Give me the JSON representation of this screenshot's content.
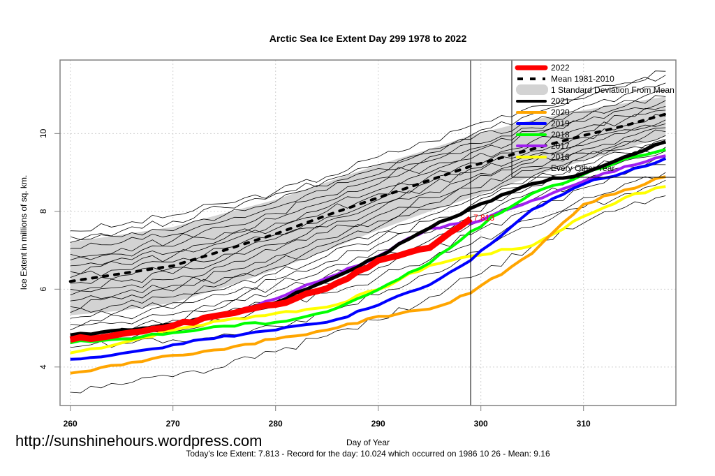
{
  "site_url": "http://sunshinehours.wordpress.com",
  "footer_text": "Today's Ice Extent: 7.813  - Record for the day: 10.024 which occurred on 1986 10 26  - Mean: 9.16",
  "chart_data": {
    "type": "line",
    "title": "Arctic Sea Ice Extent Day 299 1978 to 2022",
    "xlabel": "Day of Year",
    "ylabel": "Ice Extent in millions of sq. km.",
    "xlim": [
      259,
      319
    ],
    "ylim": [
      3.01,
      11.89
    ],
    "xticks": [
      260,
      270,
      280,
      290,
      300,
      310
    ],
    "yticks": [
      4,
      6,
      8,
      10
    ],
    "grid": true,
    "current_day": 299,
    "current_value_label": "7.813",
    "current_value": 7.813,
    "legend_position": "top-right",
    "legend": [
      {
        "label": "2022",
        "color": "#ff0000",
        "style": "thick"
      },
      {
        "label": "Mean 1981-2010",
        "color": "#000000",
        "style": "dashed"
      },
      {
        "label": "1 Standard Deviation From Mean",
        "color": "#d3d3d3",
        "style": "band"
      },
      {
        "label": "2021",
        "color": "#000000",
        "style": "solid"
      },
      {
        "label": "2020",
        "color": "#ffa500",
        "style": "solid"
      },
      {
        "label": "2019",
        "color": "#0000ff",
        "style": "solid"
      },
      {
        "label": "2018",
        "color": "#00ff00",
        "style": "solid"
      },
      {
        "label": "2017",
        "color": "#a020f0",
        "style": "solid"
      },
      {
        "label": "2016",
        "color": "#ffff00",
        "style": "solid"
      },
      {
        "label": "Every Other Year",
        "color": "#000000",
        "style": "thin"
      }
    ],
    "x": [
      260,
      265,
      270,
      275,
      280,
      285,
      290,
      295,
      299,
      305,
      310,
      314,
      318
    ],
    "mean": {
      "name": "Mean 1981-2010",
      "values": [
        6.2,
        6.4,
        6.6,
        7.0,
        7.42,
        7.9,
        8.35,
        8.8,
        9.16,
        9.6,
        9.95,
        10.2,
        10.5
      ]
    },
    "std_band": {
      "name": "1 Standard Deviation From Mean",
      "upper": [
        7.21,
        7.4,
        7.6,
        7.95,
        8.3,
        8.75,
        9.2,
        9.6,
        9.95,
        10.35,
        10.6,
        10.78,
        10.95
      ],
      "lower": [
        5.33,
        5.45,
        5.65,
        6.05,
        6.5,
        7.0,
        7.52,
        8.0,
        8.35,
        8.9,
        9.3,
        9.6,
        9.93
      ]
    },
    "series": [
      {
        "name": "2016",
        "color": "#ffff00",
        "values": [
          4.36,
          4.62,
          4.95,
          5.2,
          5.38,
          5.54,
          5.99,
          6.61,
          6.85,
          7.12,
          7.87,
          8.35,
          8.64
        ]
      },
      {
        "name": "2017",
        "color": "#a020f0",
        "values": [
          4.65,
          4.85,
          5.05,
          5.35,
          5.75,
          6.29,
          6.85,
          7.57,
          7.69,
          8.28,
          8.77,
          9.15,
          9.43
        ]
      },
      {
        "name": "2018",
        "color": "#00ff00",
        "values": [
          4.62,
          4.72,
          4.88,
          5.05,
          5.15,
          5.42,
          5.99,
          6.67,
          7.48,
          8.46,
          8.95,
          9.35,
          9.59
        ]
      },
      {
        "name": "2019",
        "color": "#0000ff",
        "values": [
          4.2,
          4.35,
          4.57,
          4.8,
          4.95,
          5.15,
          5.59,
          6.11,
          6.74,
          8.05,
          8.7,
          9.0,
          9.36
        ]
      },
      {
        "name": "2020",
        "color": "#ffa500",
        "values": [
          3.84,
          4.05,
          4.3,
          4.45,
          4.72,
          4.95,
          5.3,
          5.49,
          5.9,
          6.92,
          8.18,
          8.55,
          8.89
        ]
      },
      {
        "name": "2021",
        "color": "#000000",
        "values": [
          4.82,
          4.95,
          5.1,
          5.35,
          5.65,
          6.22,
          6.83,
          7.57,
          8.08,
          8.71,
          8.98,
          9.4,
          9.79
        ]
      },
      {
        "name": "2022",
        "color": "#ff0000",
        "values": [
          4.7,
          4.85,
          5.06,
          5.35,
          5.6,
          6.02,
          6.74,
          7.06,
          7.813
        ]
      }
    ],
    "other_years": [
      [
        7.5,
        7.65,
        7.9,
        8.2,
        8.5,
        8.9,
        9.4,
        9.8,
        10.2,
        10.7,
        11.0,
        11.3,
        11.6
      ],
      [
        7.35,
        7.5,
        7.75,
        8.1,
        8.45,
        8.8,
        9.2,
        9.6,
        9.95,
        10.5,
        10.9,
        11.2,
        11.5
      ],
      [
        7.2,
        7.35,
        7.5,
        7.9,
        8.25,
        8.65,
        9.1,
        9.5,
        9.85,
        10.3,
        10.7,
        11.0,
        11.3
      ],
      [
        7.05,
        7.2,
        7.4,
        7.75,
        8.1,
        8.55,
        8.95,
        9.4,
        9.75,
        10.15,
        10.55,
        10.85,
        11.1
      ],
      [
        6.9,
        7.05,
        7.25,
        7.6,
        7.95,
        8.4,
        8.85,
        9.3,
        9.6,
        10.05,
        10.4,
        10.7,
        10.95
      ],
      [
        6.75,
        6.9,
        7.1,
        7.45,
        7.8,
        8.25,
        8.7,
        9.15,
        9.5,
        9.95,
        10.3,
        10.6,
        10.85
      ],
      [
        6.6,
        6.8,
        6.95,
        7.3,
        7.7,
        8.1,
        8.55,
        9.0,
        9.35,
        9.8,
        10.15,
        10.45,
        10.7
      ],
      [
        6.45,
        6.65,
        6.85,
        7.2,
        7.55,
        8.0,
        8.45,
        8.9,
        9.25,
        9.7,
        10.05,
        10.35,
        10.6
      ],
      [
        6.3,
        6.5,
        6.7,
        7.05,
        7.4,
        7.85,
        8.3,
        8.75,
        9.1,
        9.55,
        9.9,
        10.2,
        10.45
      ],
      [
        6.15,
        6.35,
        6.55,
        6.9,
        7.3,
        7.75,
        8.2,
        8.65,
        9.0,
        9.45,
        9.8,
        10.1,
        10.35
      ],
      [
        6.0,
        6.2,
        6.4,
        6.75,
        7.15,
        7.6,
        8.05,
        8.5,
        8.85,
        9.35,
        9.7,
        10.0,
        10.25
      ],
      [
        5.85,
        6.05,
        6.25,
        6.6,
        7.0,
        7.45,
        7.9,
        8.35,
        8.75,
        9.25,
        9.6,
        9.9,
        10.15
      ],
      [
        5.7,
        5.9,
        6.1,
        6.45,
        6.85,
        7.3,
        7.75,
        8.2,
        8.6,
        9.15,
        9.5,
        9.8,
        10.05
      ],
      [
        5.55,
        5.75,
        5.95,
        6.3,
        6.7,
        7.15,
        7.6,
        8.05,
        8.45,
        9.05,
        9.4,
        9.7,
        9.95
      ],
      [
        5.4,
        5.6,
        5.8,
        6.15,
        6.55,
        7.0,
        7.45,
        7.9,
        8.3,
        8.9,
        9.3,
        9.6,
        9.85
      ],
      [
        5.25,
        5.45,
        5.65,
        6.0,
        6.4,
        6.85,
        7.3,
        7.75,
        8.15,
        8.8,
        9.2,
        9.5,
        9.75
      ],
      [
        5.1,
        5.3,
        5.5,
        5.85,
        6.25,
        6.7,
        7.15,
        7.6,
        8.0,
        8.65,
        9.1,
        9.4,
        9.65
      ],
      [
        4.95,
        5.15,
        5.35,
        5.7,
        6.1,
        6.55,
        7.0,
        7.45,
        7.85,
        8.5,
        8.95,
        9.3,
        9.55
      ],
      [
        4.85,
        5.0,
        5.2,
        5.55,
        5.95,
        6.35,
        6.8,
        7.25,
        7.65,
        8.3,
        8.8,
        9.15,
        9.4
      ],
      [
        4.75,
        4.9,
        5.05,
        5.4,
        5.75,
        6.15,
        6.55,
        7.0,
        7.4,
        8.05,
        8.6,
        8.95,
        9.2
      ],
      [
        4.6,
        4.75,
        4.9,
        5.2,
        5.55,
        5.9,
        6.3,
        6.75,
        7.15,
        7.8,
        8.35,
        8.7,
        9.0
      ],
      [
        4.5,
        4.6,
        4.7,
        4.85,
        5.05,
        5.4,
        5.85,
        6.4,
        6.95,
        7.6,
        8.1,
        8.45,
        8.8
      ],
      [
        3.35,
        3.55,
        3.75,
        4.0,
        4.39,
        4.8,
        5.2,
        5.8,
        6.3,
        7.1,
        7.7,
        8.1,
        8.4
      ]
    ]
  }
}
